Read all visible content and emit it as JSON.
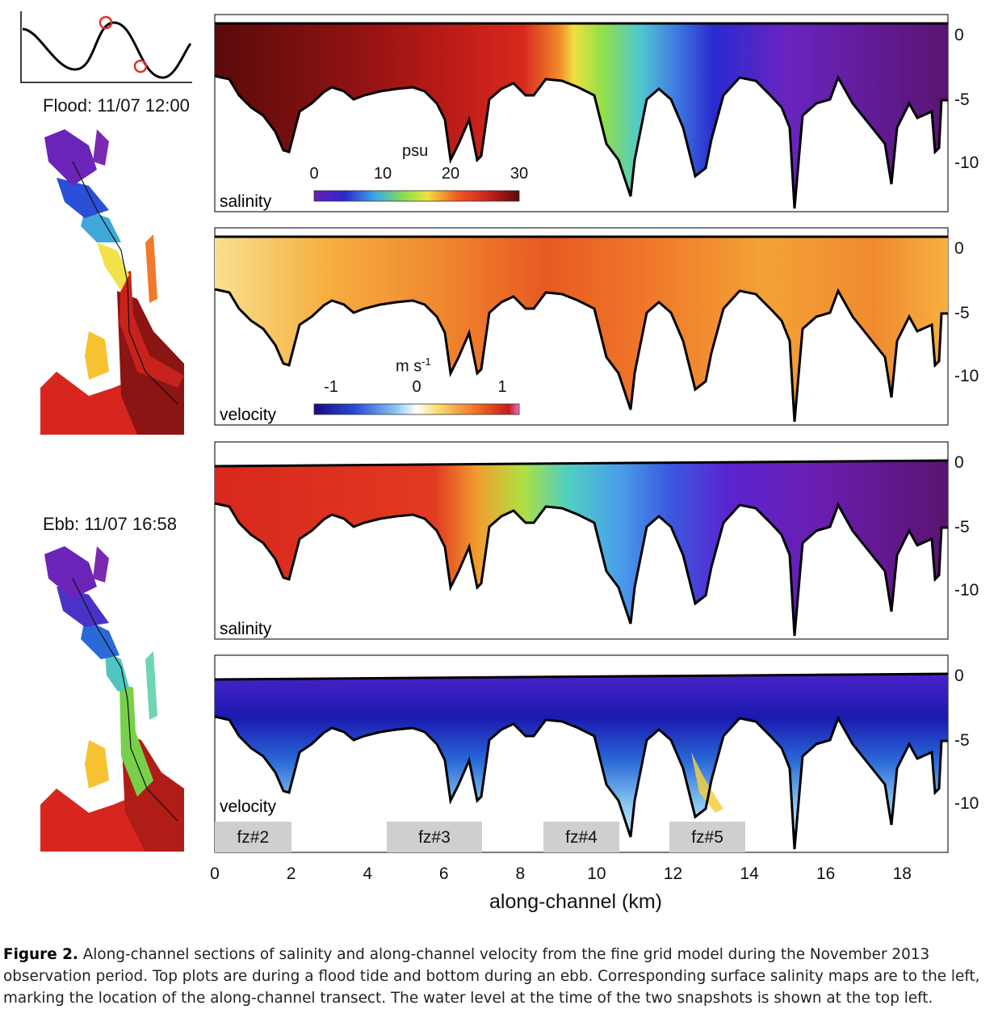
{
  "tide_inset": {
    "marker_color": "#e0302a"
  },
  "snapshots": {
    "flood": {
      "label": "Flood: 11/07 12:00"
    },
    "ebb": {
      "label": "Ebb: 11/07 16:58"
    }
  },
  "panels": [
    {
      "name": "flood-salinity",
      "label": "salinity",
      "variable": "salinity"
    },
    {
      "name": "flood-velocity",
      "label": "velocity",
      "variable": "velocity"
    },
    {
      "name": "ebb-salinity",
      "label": "salinity",
      "variable": "salinity"
    },
    {
      "name": "ebb-velocity",
      "label": "velocity",
      "variable": "velocity"
    }
  ],
  "y_ticks": [
    "0",
    "-5",
    "-10"
  ],
  "x_axis": {
    "label": "along-channel (km)",
    "ticks": [
      "0",
      "2",
      "4",
      "6",
      "8",
      "10",
      "12",
      "14",
      "16",
      "18"
    ],
    "range_km": [
      0,
      19.2
    ]
  },
  "salinity_colorbar": {
    "unit": "psu",
    "ticks": [
      "0",
      "10",
      "20",
      "30"
    ]
  },
  "velocity_colorbar": {
    "unit": "m s",
    "unit_exponent": "-1",
    "ticks": [
      "-1",
      "0",
      "1"
    ]
  },
  "frontal_zones": [
    {
      "label": "fz#2",
      "start_km": 0,
      "end_km": 2
    },
    {
      "label": "fz#3",
      "start_km": 4.5,
      "end_km": 7
    },
    {
      "label": "fz#4",
      "start_km": 8.6,
      "end_km": 10.6
    },
    {
      "label": "fz#5",
      "start_km": 11.9,
      "end_km": 13.9
    }
  ],
  "caption": {
    "figure_label": "Figure 2.",
    "text": "Along-channel sections of salinity and along-channel velocity from the fine grid model during the November 2013 observation period. Top plots are during a flood tide and bottom during an ebb. Corresponding surface salinity maps are to the left, marking the location of the along-channel transect. The water level at the time of the two snapshots is shown at the top left."
  }
}
